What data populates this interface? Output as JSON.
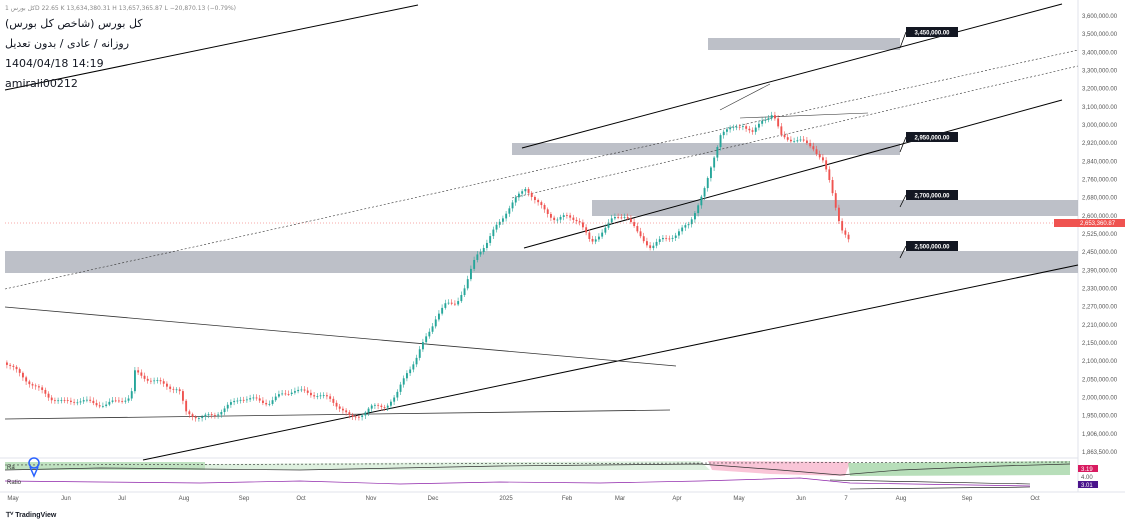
{
  "header": {
    "topline": "كل بورس 1D 22.65 K 13,634,380.31 H 13,657,365.87 L −20,870.13 (−0.79%)",
    "title": "كل بورس (شاخص كل بورس)",
    "subtitle": "روزانه / عادى / بدون تعديل",
    "date": "1404/04/18 14:19",
    "author": "amirali00212"
  },
  "watermark": "TradingView",
  "price_axis": [
    "3,600,000.00",
    "3,500,000.00",
    "3,400,000.00",
    "3,300,000.00",
    "3,200,000.00",
    "3,100,000.00",
    "3,000,000.00",
    "2,920,000.00",
    "2,840,000.00",
    "2,760,000.00",
    "2,680,000.00",
    "2,600,000.00",
    "2,525,000.00",
    "2,450,000.00",
    "2,390,000.00",
    "2,330,000.00",
    "2,270,000.00",
    "2,210,000.00",
    "2,150,000.00",
    "2,100,000.00",
    "2,050,000.00",
    "2,000,000.00",
    "1,950,000.00",
    "1,906,000.00",
    "1,863,500.00"
  ],
  "time_axis": [
    "May",
    "Jun",
    "Jul",
    "Aug",
    "Sep",
    "Oct",
    "Nov",
    "Dec",
    "2025",
    "Feb",
    "Mar",
    "Apr",
    "May",
    "Jun",
    "7",
    "Aug",
    "Sep",
    "Oct"
  ],
  "levels": [
    {
      "label": "3,450,000.00"
    },
    {
      "label": "2,950,000.00"
    },
    {
      "label": "2,700,000.00"
    },
    {
      "label": "2,500,000.00"
    }
  ],
  "last_price_tag": "2,653,360.87",
  "indicator": {
    "row1_label": "Ra",
    "row1_value": "3.19",
    "row2_label": "Ratio",
    "row2_value_a": "4.00",
    "row2_value_b": "3.01"
  },
  "colors": {
    "up": "#26a69a",
    "down": "#ef5350",
    "zone": "#b2b5be",
    "label_bg": "#131722",
    "indicator_green": "#a5d6a7",
    "indicator_red": "#f48fb1"
  },
  "chart_data": {
    "type": "candlestick",
    "title": "كل بورس (شاخص كل بورس)",
    "interval": "daily",
    "y_range": [
      1863500,
      3600000
    ],
    "closes_approx": [
      {
        "x": "May 2024",
        "close": 2220000
      },
      {
        "x": "Jun 2024",
        "close": 2080000
      },
      {
        "x": "Jul 2024",
        "close": 2200000
      },
      {
        "x": "Aug 2024",
        "close": 2020000
      },
      {
        "x": "Sep 2024",
        "close": 2130000
      },
      {
        "x": "Oct 2024",
        "close": 2090000
      },
      {
        "x": "Nov 2024",
        "close": 2060000
      },
      {
        "x": "Dec 2024",
        "close": 2480000
      },
      {
        "x": "Jan 2025",
        "close": 2920000
      },
      {
        "x": "Feb 2025",
        "close": 2760000
      },
      {
        "x": "Mar 2025",
        "close": 2780000
      },
      {
        "x": "Apr 2025",
        "close": 3150000
      },
      {
        "x": "May 2025",
        "close": 3230000
      },
      {
        "x": "Jun 2025",
        "close": 3050000
      },
      {
        "x": "Jul 2025",
        "close": 2653360.87
      }
    ],
    "horizontal_levels": [
      3450000,
      2950000,
      2700000,
      2500000
    ]
  }
}
